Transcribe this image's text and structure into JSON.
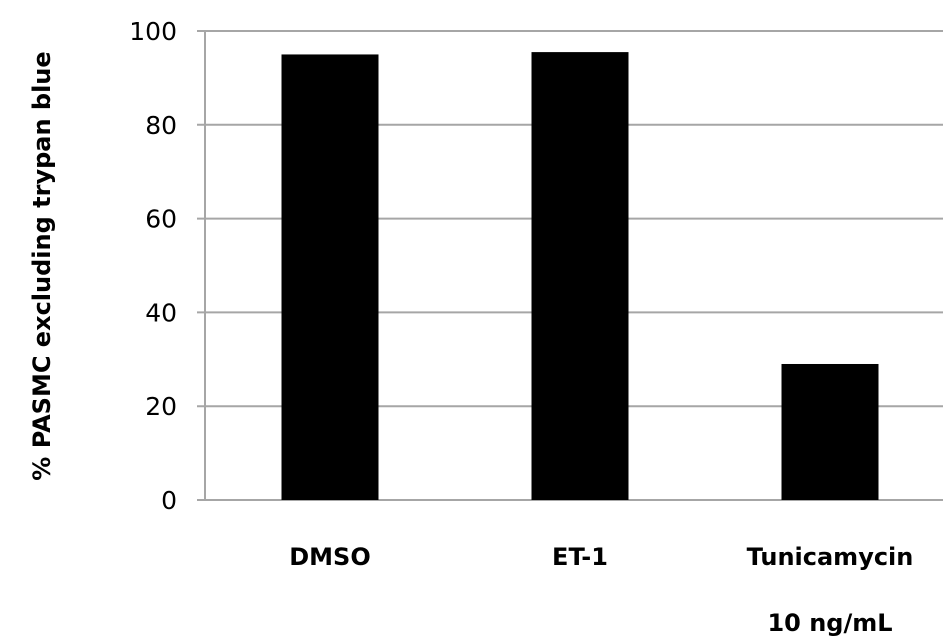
{
  "chart_data": {
    "type": "bar",
    "title": "",
    "xlabel": "",
    "ylabel": "% PASMC excluding trypan blue",
    "categories": [
      "DMSO",
      "ET-1",
      "Tunicamycin"
    ],
    "category_sublabels": [
      "",
      "",
      "10 ng/mL"
    ],
    "values": [
      95,
      95.5,
      29
    ],
    "ylim": [
      0,
      100
    ],
    "yticks": [
      0,
      20,
      40,
      60,
      80,
      100
    ],
    "grid": true,
    "legend": "none",
    "bar_color": "#000000",
    "grid_color": "#a6a6a6"
  }
}
